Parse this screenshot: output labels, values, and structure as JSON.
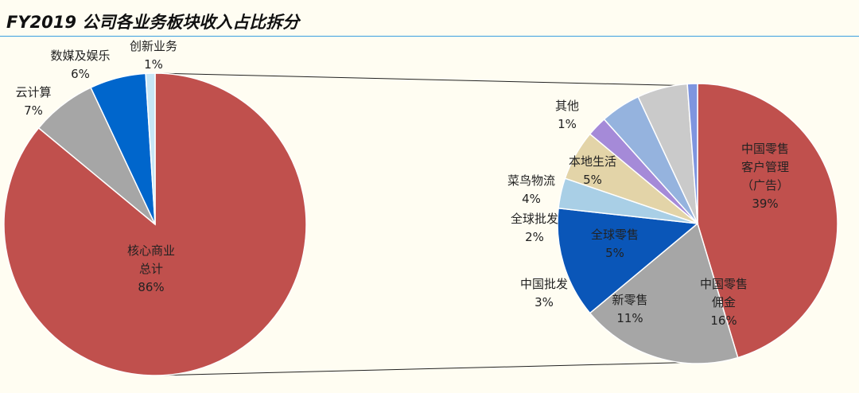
{
  "title": "FY2019 公司各业务板块收入占比拆分",
  "chart_data": [
    {
      "type": "pie",
      "title": "",
      "slices": [
        {
          "name": "核心商业总计",
          "label_lines": [
            "核心商业",
            "总计"
          ],
          "value": 86,
          "value_label": "86%",
          "color": "#c0504d"
        },
        {
          "name": "云计算",
          "label_lines": [
            "云计算"
          ],
          "value": 7,
          "value_label": "7%",
          "color": "#a6a6a6"
        },
        {
          "name": "数媒及娱乐",
          "label_lines": [
            "数媒及娱乐"
          ],
          "value": 6,
          "value_label": "6%",
          "color": "#0066cc"
        },
        {
          "name": "创新业务",
          "label_lines": [
            "创新业务"
          ],
          "value": 1,
          "value_label": "1%",
          "color": "#c6e6f6"
        }
      ]
    },
    {
      "type": "pie",
      "title": "",
      "slices": [
        {
          "name": "中国零售客户管理（广告）",
          "label_lines": [
            "中国零售",
            "客户管理",
            "（广告）"
          ],
          "value": 39,
          "value_label": "39%",
          "color": "#c0504d"
        },
        {
          "name": "中国零售佣金",
          "label_lines": [
            "中国零售",
            "佣金"
          ],
          "value": 16,
          "value_label": "16%",
          "color": "#a6a6a6"
        },
        {
          "name": "新零售",
          "label_lines": [
            "新零售"
          ],
          "value": 11,
          "value_label": "11%",
          "color": "#0a56b8"
        },
        {
          "name": "中国批发",
          "label_lines": [
            "中国批发"
          ],
          "value": 3,
          "value_label": "3%",
          "color": "#a9cfe6"
        },
        {
          "name": "全球零售",
          "label_lines": [
            "全球零售"
          ],
          "value": 5,
          "value_label": "5%",
          "color": "#e3d4a8"
        },
        {
          "name": "全球批发",
          "label_lines": [
            "全球批发"
          ],
          "value": 2,
          "value_label": "2%",
          "color": "#a58ad8"
        },
        {
          "name": "菜鸟物流",
          "label_lines": [
            "菜鸟物流"
          ],
          "value": 4,
          "value_label": "4%",
          "color": "#95b3de"
        },
        {
          "name": "本地生活",
          "label_lines": [
            "本地生活"
          ],
          "value": 5,
          "value_label": "5%",
          "color": "#cacaca"
        },
        {
          "name": "其他",
          "label_lines": [
            "其他"
          ],
          "value": 1,
          "value_label": "1%",
          "color": "#7e95df"
        }
      ]
    }
  ]
}
